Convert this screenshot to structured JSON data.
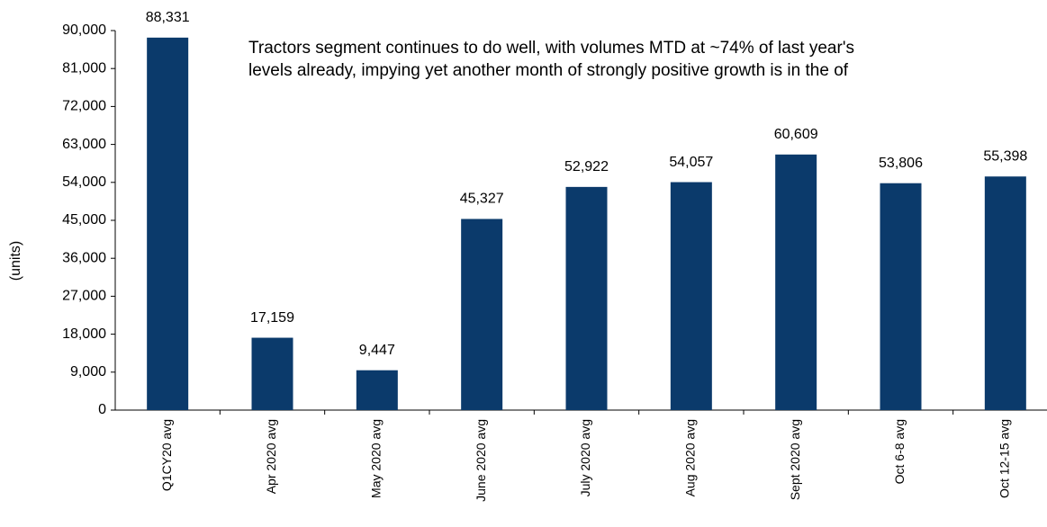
{
  "chart_data": {
    "type": "bar",
    "y_label": "(units)",
    "annotation": [
      "Tractors segment continues to do well, with volumes MTD at ~74% of last year's",
      "levels already, impying yet another month of strongly positive growth is in the of"
    ],
    "categories": [
      "Q1CY20 avg",
      "Apr 2020 avg",
      "May 2020 avg",
      "June 2020 avg",
      "July 2020 avg",
      "Aug 2020 avg",
      "Sept 2020 avg",
      "Oct 6-8 avg",
      "Oct 12-15 avg"
    ],
    "values": [
      88331,
      17159,
      9447,
      45327,
      52922,
      54057,
      60609,
      53806,
      55398
    ],
    "value_labels": [
      "88,331",
      "17,159",
      "9,447",
      "45,327",
      "52,922",
      "54,057",
      "60,609",
      "53,806",
      "55,398"
    ],
    "color": "#0b3a6b",
    "ylim": [
      0,
      90000
    ],
    "yticks": [
      0,
      {
        "value": 9000,
        "label": "9,000"
      },
      {
        "value": 18000,
        "label": "18,000"
      },
      {
        "value": 27000,
        "label": "27,000"
      },
      {
        "value": 36000,
        "label": "36,000"
      },
      {
        "value": 45000,
        "label": "45,000"
      },
      {
        "value": 54000,
        "label": "54,000"
      },
      {
        "value": 63000,
        "label": "63,000"
      },
      {
        "value": 72000,
        "label": "72,000"
      },
      {
        "value": 81000,
        "label": "81,000"
      },
      {
        "value": 90000,
        "label": "90,000"
      }
    ],
    "grid": false
  }
}
